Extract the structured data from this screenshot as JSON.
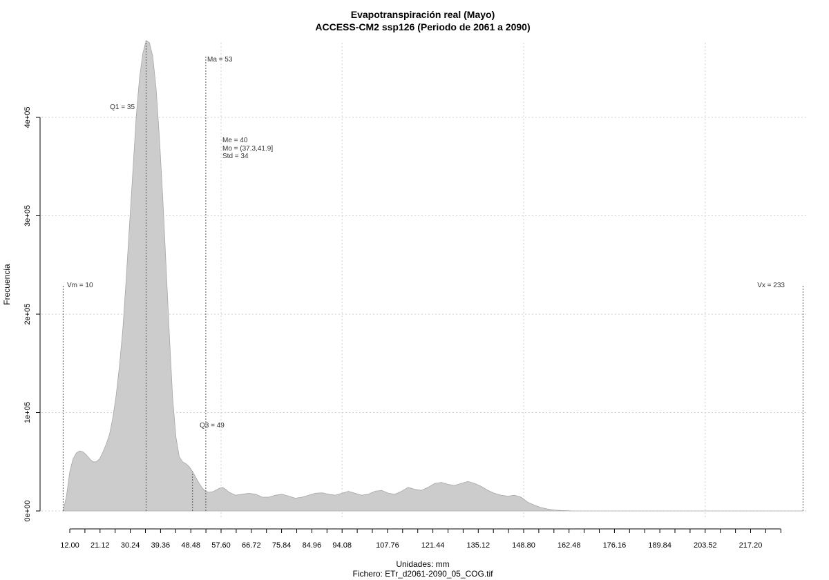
{
  "chart_data": {
    "type": "area",
    "title": "Evapotranspiración real (Mayo)",
    "subtitle": "ACCESS-CM2 ssp126 (Periodo de 2061 a 2090)",
    "xlabel": "Unidades: mm",
    "footer": "Fichero: ETr_d2061-2090_05_COG.tif",
    "ylabel": "Frecuencia",
    "xlim": [
      8.6,
      243
    ],
    "ylim": [
      0,
      480000
    ],
    "x_ticks": [
      12,
      16.56,
      21.12,
      25.68,
      30.24,
      34.8,
      39.36,
      43.92,
      48.48,
      53.04,
      57.6,
      62.16,
      66.72,
      71.28,
      75.84,
      80.4,
      84.96,
      89.52,
      94.08,
      98.64,
      103.2,
      107.76,
      112.32,
      116.88,
      121.44,
      126,
      130.56,
      135.12,
      139.68,
      144.24,
      148.8,
      153.36,
      157.92,
      162.48,
      167.04,
      171.6,
      176.16,
      180.72,
      185.28,
      189.84,
      194.4,
      198.96,
      203.52,
      208.08,
      212.64,
      217.2,
      221.76,
      226.32
    ],
    "x_tick_labels": [
      "12.00",
      "21.12",
      "30.24",
      "39.36",
      "48.48",
      "57.60",
      "66.72",
      "75.84",
      "84.96",
      "94.08",
      "107.76",
      "121.44",
      "135.12",
      "148.80",
      "162.48",
      "176.16",
      "189.84",
      "203.52",
      "217.20"
    ],
    "y_ticks": [
      0,
      100000,
      200000,
      300000,
      400000
    ],
    "y_tick_labels": [
      "0e+00",
      "1e+05",
      "2e+05",
      "3e+05",
      "4e+05"
    ],
    "x_grid": [
      57.6,
      94.08,
      148.8,
      203.52
    ],
    "grid": true,
    "fill_color": "#cccccc",
    "line_color": "#a6a6a6",
    "series": [
      {
        "x": [
          10,
          11,
          12,
          13,
          14,
          15,
          16,
          17,
          18,
          19,
          20,
          21,
          22,
          23,
          24,
          25,
          26,
          27,
          28,
          29,
          30,
          31,
          32,
          33,
          34,
          35,
          36,
          37,
          38,
          39,
          40,
          41,
          42,
          43,
          44,
          45,
          46,
          47,
          48,
          49,
          50,
          51,
          52,
          53,
          54,
          55,
          56,
          57,
          58,
          59,
          60,
          62,
          64,
          66,
          68,
          70,
          72,
          74,
          76,
          78,
          80,
          82,
          84,
          86,
          88,
          90,
          92,
          94,
          96,
          98,
          100,
          102,
          104,
          106,
          108,
          110,
          112,
          114,
          116,
          118,
          120,
          122,
          124,
          126,
          128,
          130,
          132,
          134,
          136,
          138,
          140,
          142,
          144,
          146,
          148,
          150,
          152,
          154,
          156,
          158,
          160,
          162,
          164,
          166,
          168,
          170,
          172,
          175,
          180,
          190,
          200,
          210,
          220,
          230,
          233
        ],
        "y": [
          0,
          15000,
          40000,
          53000,
          59000,
          61000,
          60000,
          57000,
          53000,
          50000,
          50000,
          53000,
          60000,
          68000,
          78000,
          95000,
          118000,
          148000,
          185000,
          235000,
          290000,
          345000,
          400000,
          440000,
          465000,
          478000,
          476000,
          462000,
          430000,
          380000,
          320000,
          250000,
          180000,
          115000,
          75000,
          55000,
          50000,
          48000,
          45000,
          40000,
          34000,
          28000,
          23000,
          20000,
          19000,
          19500,
          21000,
          23000,
          24000,
          22000,
          19000,
          16000,
          17000,
          18000,
          17000,
          14000,
          14000,
          16000,
          17000,
          15000,
          13000,
          14000,
          16000,
          18000,
          18500,
          17000,
          16000,
          18000,
          20000,
          18000,
          16000,
          17000,
          20000,
          21000,
          18000,
          17000,
          20000,
          24000,
          22000,
          21000,
          24000,
          28000,
          29000,
          27000,
          26000,
          28000,
          30000,
          28000,
          25000,
          21000,
          18000,
          16000,
          15000,
          16000,
          14000,
          9000,
          6000,
          3500,
          2000,
          1000,
          500,
          200,
          0,
          0,
          0,
          0,
          0,
          0,
          0,
          0,
          0,
          0,
          0,
          0,
          0
        ]
      }
    ],
    "annotations": {
      "vm": {
        "label": "Vm = 10",
        "x": 10,
        "y": 230000
      },
      "vx": {
        "label": "Vx = 233",
        "x": 233,
        "y": 230000
      },
      "q1": {
        "label": "Q1 = 35",
        "x": 35
      },
      "q3": {
        "label": "Q3 = 49",
        "x": 49
      },
      "ma": {
        "label": "Ma = 53",
        "x": 53,
        "y": 462000
      },
      "stats": [
        "Me = 40",
        "Mo = (37.3,41.9]",
        "Std = 34"
      ]
    }
  }
}
